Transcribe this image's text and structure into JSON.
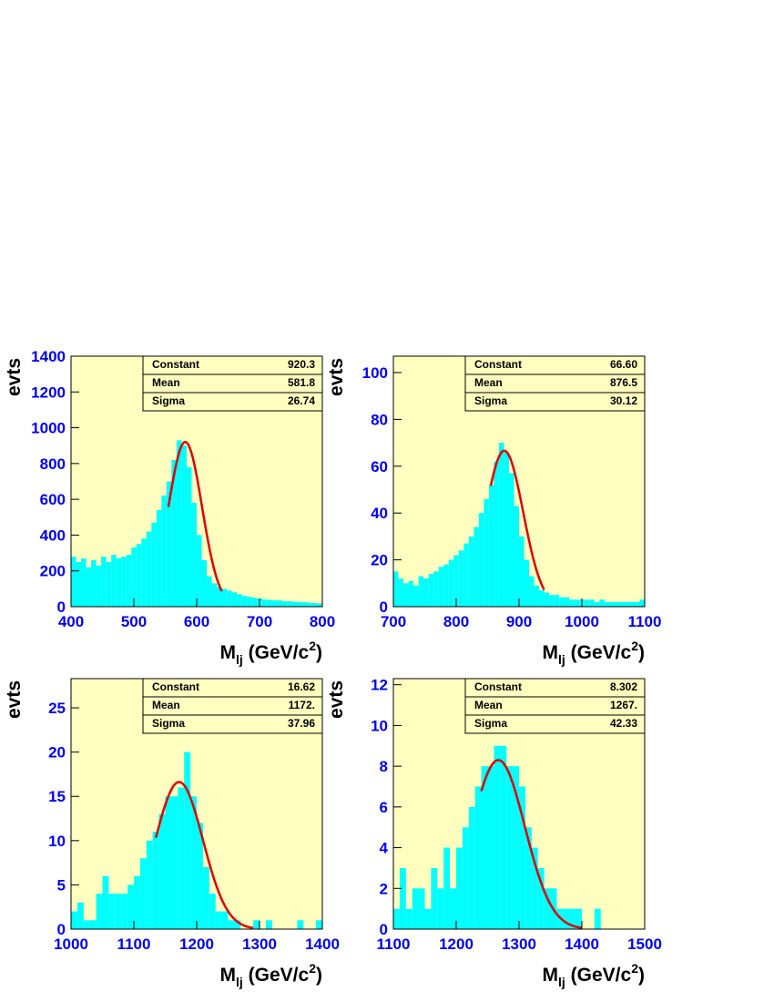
{
  "chart_data": [
    {
      "type": "histogram",
      "ylabel": "evts",
      "xlabel": [
        "M",
        "lj",
        " (GeV/c",
        "2",
        ")"
      ],
      "color": "#00ffff",
      "fit_color": "#dd0000",
      "background": "#ffffc0",
      "xlim": [
        400,
        800
      ],
      "xticks": [
        400,
        500,
        600,
        700,
        800
      ],
      "ylim": [
        0,
        1400
      ],
      "yticks": [
        0,
        200,
        400,
        600,
        800,
        1000,
        1200,
        1400
      ],
      "bins": [
        400,
        408,
        416,
        424,
        432,
        440,
        448,
        456,
        464,
        472,
        480,
        488,
        496,
        504,
        512,
        520,
        528,
        536,
        544,
        552,
        560,
        568,
        576,
        584,
        592,
        600,
        608,
        616,
        624,
        632,
        640,
        648,
        656,
        664,
        672,
        680,
        688,
        696,
        704,
        712,
        720,
        728,
        736,
        744,
        752,
        760,
        768,
        776,
        784,
        792,
        800
      ],
      "counts": [
        280,
        250,
        270,
        220,
        260,
        230,
        280,
        250,
        290,
        270,
        280,
        290,
        330,
        350,
        380,
        420,
        470,
        540,
        620,
        700,
        820,
        930,
        900,
        780,
        580,
        400,
        260,
        170,
        130,
        110,
        100,
        90,
        80,
        70,
        60,
        55,
        50,
        45,
        40,
        38,
        35,
        35,
        30,
        30,
        28,
        25,
        25,
        22,
        20,
        18
      ],
      "fit_range": [
        555,
        640
      ],
      "stats": [
        {
          "name": "Constant",
          "value": 920.3
        },
        {
          "name": "Mean",
          "value": 581.8
        },
        {
          "name": "Sigma",
          "value": 26.74
        }
      ]
    },
    {
      "type": "histogram",
      "ylabel": "evts",
      "xlabel": [
        "M",
        "lj",
        " (GeV/c",
        "2",
        ")"
      ],
      "color": "#00ffff",
      "fit_color": "#dd0000",
      "background": "#ffffc0",
      "xlim": [
        700,
        1100
      ],
      "xticks": [
        700,
        800,
        900,
        1000,
        1100
      ],
      "ylim": [
        0,
        107
      ],
      "yticks": [
        0,
        20,
        40,
        60,
        80,
        100
      ],
      "bins": [
        700,
        708,
        716,
        724,
        732,
        740,
        748,
        756,
        764,
        772,
        780,
        788,
        796,
        804,
        812,
        820,
        828,
        836,
        844,
        852,
        860,
        868,
        876,
        884,
        892,
        900,
        908,
        916,
        924,
        932,
        940,
        948,
        956,
        964,
        972,
        980,
        988,
        996,
        1004,
        1012,
        1020,
        1028,
        1036,
        1044,
        1052,
        1060,
        1068,
        1076,
        1084,
        1092,
        1100
      ],
      "counts": [
        15,
        12,
        10,
        11,
        9,
        13,
        12,
        14,
        15,
        17,
        18,
        20,
        22,
        24,
        27,
        30,
        34,
        40,
        46,
        52,
        62,
        70,
        66,
        57,
        43,
        30,
        20,
        13,
        9,
        7,
        6,
        5,
        5,
        4,
        4,
        3,
        3,
        3,
        3,
        3,
        2,
        3,
        2,
        2,
        2,
        2,
        2,
        2,
        2,
        3
      ],
      "fit_range": [
        855,
        940
      ],
      "stats": [
        {
          "name": "Constant",
          "value": 66.6,
          "label": "66.60"
        },
        {
          "name": "Mean",
          "value": 876.5
        },
        {
          "name": "Sigma",
          "value": 30.12
        }
      ]
    },
    {
      "type": "histogram",
      "ylabel": "evts",
      "xlabel": [
        "M",
        "lj",
        " (GeV/c",
        "2",
        ")"
      ],
      "color": "#00ffff",
      "fit_color": "#dd0000",
      "background": "#ffffc0",
      "xlim": [
        1000,
        1400
      ],
      "xticks": [
        1000,
        1100,
        1200,
        1300,
        1400
      ],
      "ylim": [
        0,
        28.3
      ],
      "yticks": [
        0,
        5,
        10,
        15,
        20,
        25
      ],
      "bins": [
        1000,
        1010,
        1020,
        1030,
        1040,
        1050,
        1060,
        1070,
        1080,
        1090,
        1100,
        1110,
        1120,
        1130,
        1140,
        1150,
        1160,
        1170,
        1180,
        1190,
        1200,
        1210,
        1220,
        1230,
        1240,
        1250,
        1260,
        1270,
        1280,
        1290,
        1300,
        1310,
        1320,
        1330,
        1340,
        1350,
        1360,
        1370,
        1380,
        1390,
        1400
      ],
      "counts": [
        2,
        3,
        1,
        1,
        4,
        6,
        4,
        4,
        4,
        5,
        6,
        8,
        10,
        11,
        13,
        15,
        15,
        16,
        20,
        15,
        12,
        7,
        4,
        2,
        2,
        1,
        1,
        0,
        0,
        1,
        0,
        1,
        0,
        0,
        0,
        0,
        1,
        0,
        0,
        1
      ],
      "fit_range": [
        1135,
        1290
      ],
      "stats": [
        {
          "name": "Constant",
          "value": 16.62
        },
        {
          "name": "Mean",
          "value": 1172,
          "label": "1172."
        },
        {
          "name": "Sigma",
          "value": 37.96
        }
      ]
    },
    {
      "type": "histogram",
      "ylabel": "evts",
      "xlabel": [
        "M",
        "lj",
        " (GeV/c",
        "2",
        ")"
      ],
      "color": "#00ffff",
      "fit_color": "#dd0000",
      "background": "#ffffc0",
      "xlim": [
        1100,
        1500
      ],
      "xticks": [
        1100,
        1200,
        1300,
        1400,
        1500
      ],
      "ylim": [
        0,
        12.3
      ],
      "yticks": [
        0,
        2,
        4,
        6,
        8,
        10,
        12
      ],
      "bins": [
        1100,
        1110,
        1120,
        1130,
        1140,
        1150,
        1160,
        1170,
        1180,
        1190,
        1200,
        1210,
        1220,
        1230,
        1240,
        1250,
        1260,
        1270,
        1280,
        1290,
        1300,
        1310,
        1320,
        1330,
        1340,
        1350,
        1360,
        1370,
        1380,
        1390,
        1400,
        1410,
        1420,
        1430,
        1440,
        1450,
        1460,
        1470,
        1480,
        1490,
        1500
      ],
      "counts": [
        1,
        3,
        1,
        2,
        2,
        1,
        3,
        2,
        4,
        2,
        4,
        5,
        6,
        7,
        8,
        8,
        9,
        9,
        8,
        8,
        7,
        5,
        4,
        3,
        2,
        2,
        1,
        1,
        1,
        1,
        0,
        0,
        1,
        0,
        0,
        0,
        0,
        0,
        0,
        0
      ],
      "fit_range": [
        1240,
        1400
      ],
      "stats": [
        {
          "name": "Constant",
          "value": 8.302
        },
        {
          "name": "Mean",
          "value": 1267,
          "label": "1267."
        },
        {
          "name": "Sigma",
          "value": 42.33
        }
      ]
    }
  ]
}
